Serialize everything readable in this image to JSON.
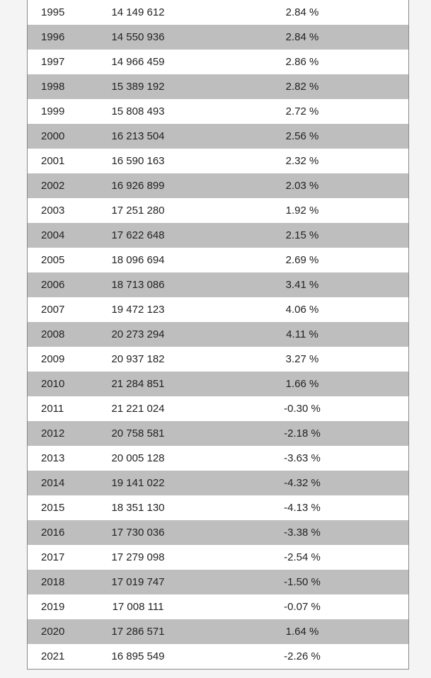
{
  "table": {
    "rows": [
      {
        "year": "1995",
        "population": "14 149 612",
        "growth": "2.84 %"
      },
      {
        "year": "1996",
        "population": "14 550 936",
        "growth": "2.84 %"
      },
      {
        "year": "1997",
        "population": "14 966 459",
        "growth": "2.86 %"
      },
      {
        "year": "1998",
        "population": "15 389 192",
        "growth": "2.82 %"
      },
      {
        "year": "1999",
        "population": "15 808 493",
        "growth": "2.72 %"
      },
      {
        "year": "2000",
        "population": "16 213 504",
        "growth": "2.56 %"
      },
      {
        "year": "2001",
        "population": "16 590 163",
        "growth": "2.32 %"
      },
      {
        "year": "2002",
        "population": "16 926 899",
        "growth": "2.03 %"
      },
      {
        "year": "2003",
        "population": "17 251 280",
        "growth": "1.92 %"
      },
      {
        "year": "2004",
        "population": "17 622 648",
        "growth": "2.15 %"
      },
      {
        "year": "2005",
        "population": "18 096 694",
        "growth": "2.69 %"
      },
      {
        "year": "2006",
        "population": "18 713 086",
        "growth": "3.41 %"
      },
      {
        "year": "2007",
        "population": "19 472 123",
        "growth": "4.06 %"
      },
      {
        "year": "2008",
        "population": "20 273 294",
        "growth": "4.11 %"
      },
      {
        "year": "2009",
        "population": "20 937 182",
        "growth": "3.27 %"
      },
      {
        "year": "2010",
        "population": "21 284 851",
        "growth": "1.66 %"
      },
      {
        "year": "2011",
        "population": "21 221 024",
        "growth": "-0.30 %"
      },
      {
        "year": "2012",
        "population": "20 758 581",
        "growth": "-2.18 %"
      },
      {
        "year": "2013",
        "population": "20 005 128",
        "growth": "-3.63 %"
      },
      {
        "year": "2014",
        "population": "19 141 022",
        "growth": "-4.32 %"
      },
      {
        "year": "2015",
        "population": "18 351 130",
        "growth": "-4.13 %"
      },
      {
        "year": "2016",
        "population": "17 730 036",
        "growth": "-3.38 %"
      },
      {
        "year": "2017",
        "population": "17 279 098",
        "growth": "-2.54 %"
      },
      {
        "year": "2018",
        "population": "17 019 747",
        "growth": "-1.50 %"
      },
      {
        "year": "2019",
        "population": "17 008 111",
        "growth": "-0.07 %"
      },
      {
        "year": "2020",
        "population": "17 286 571",
        "growth": "1.64 %"
      },
      {
        "year": "2021",
        "population": "16 895 549",
        "growth": "-2.26 %"
      }
    ]
  },
  "colors": {
    "stripe": "#bebebe",
    "background": "#ffffff",
    "page": "#f4f4f4",
    "text": "#222222"
  }
}
